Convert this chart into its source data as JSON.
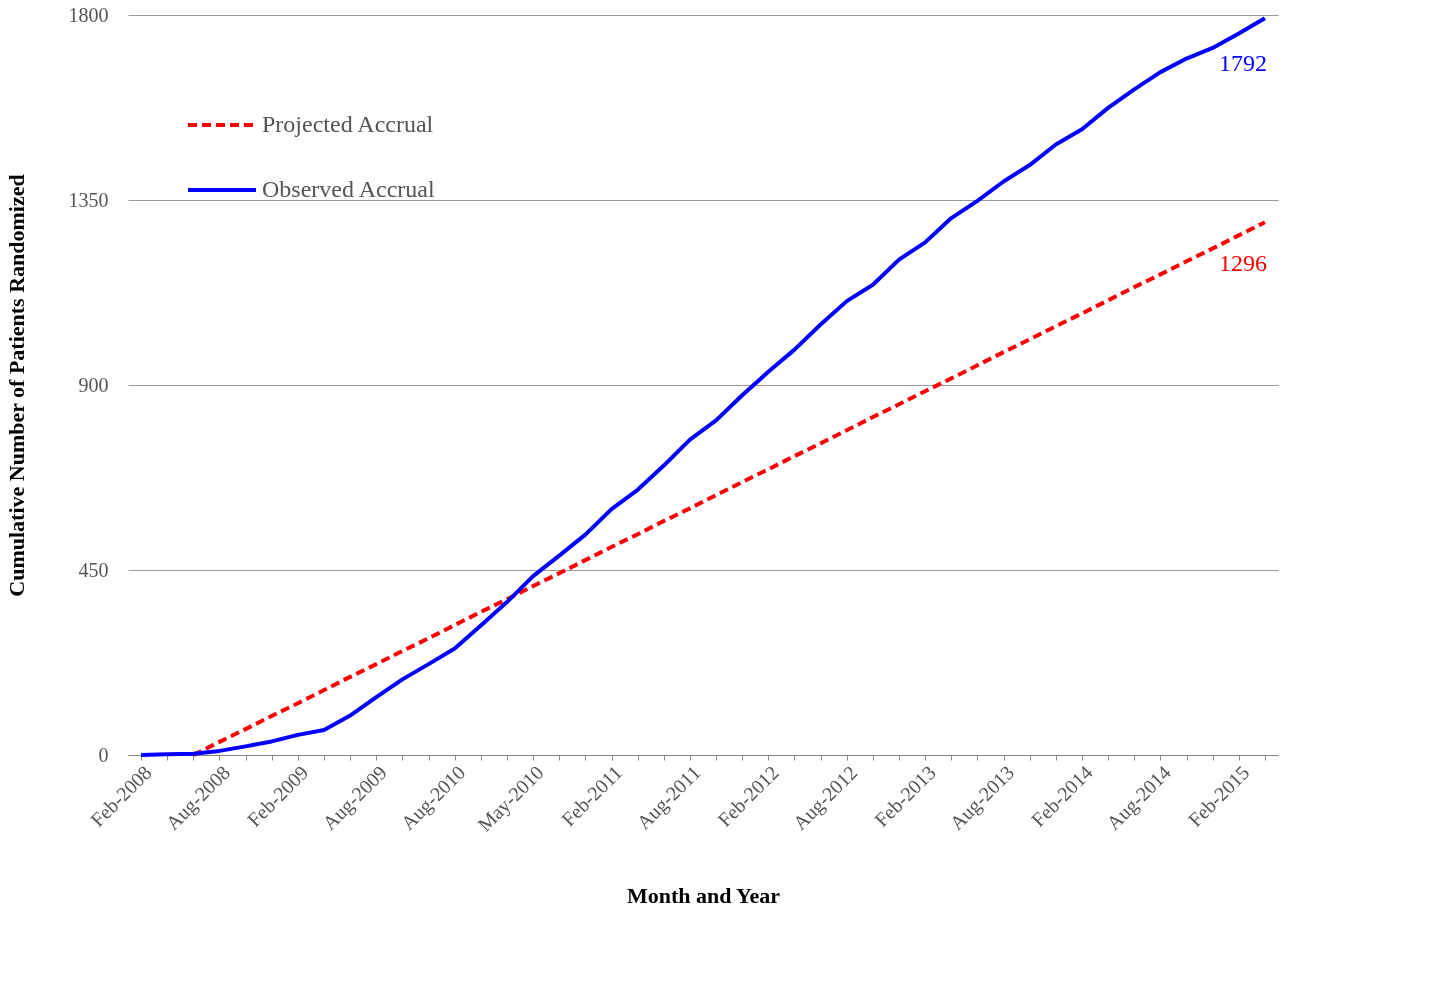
{
  "chart_data": {
    "type": "line",
    "xlabel": "Month and Year",
    "ylabel": "Cumulative Number of Patients Randomized",
    "categories": [
      "Feb-2008",
      null,
      null,
      "Aug-2008",
      null,
      null,
      "Feb-2009",
      null,
      null,
      "Aug-2009",
      null,
      null,
      "Aug-2010",
      null,
      null,
      "May-2010",
      null,
      null,
      "Feb-2011",
      null,
      null,
      "Aug-2011",
      null,
      null,
      "Feb-2012",
      null,
      null,
      "Aug-2012",
      null,
      null,
      "Feb-2013",
      null,
      null,
      "Aug-2013",
      null,
      null,
      "Feb-2014",
      null,
      null,
      "Aug-2014",
      null,
      null,
      "Feb-2015",
      null
    ],
    "series": [
      {
        "name": "Projected Accrual",
        "color": "#ff0000",
        "line_style": "dashed",
        "values": [
          null,
          null,
          0,
          32,
          63,
          95,
          126,
          158,
          190,
          221,
          253,
          284,
          316,
          348,
          379,
          411,
          442,
          474,
          506,
          537,
          569,
          600,
          632,
          664,
          695,
          727,
          758,
          790,
          822,
          853,
          885,
          916,
          948,
          980,
          1011,
          1043,
          1074,
          1106,
          1138,
          1169,
          1201,
          1232,
          1264,
          1296
        ],
        "value_labels": [
          null,
          null,
          null,
          null,
          null,
          null,
          null,
          null,
          null,
          null,
          null,
          null,
          null,
          null,
          null,
          null,
          null,
          null,
          null,
          null,
          null,
          null,
          null,
          null,
          null,
          null,
          null,
          null,
          null,
          null,
          null,
          null,
          null,
          null,
          null,
          null,
          null,
          null,
          null,
          null,
          null,
          null,
          null,
          "1296"
        ]
      },
      {
        "name": "Observed Accrual",
        "color": "#0000ff",
        "line_style": "solid",
        "values": [
          0,
          2,
          3,
          10,
          21,
          33,
          49,
          61,
          96,
          141,
          184,
          221,
          259,
          315,
          372,
          435,
          485,
          536,
          598,
          645,
          704,
          767,
          814,
          875,
          932,
          986,
          1047,
          1104,
          1144,
          1205,
          1247,
          1306,
          1348,
          1395,
          1435,
          1485,
          1522,
          1574,
          1619,
          1661,
          1694,
          1720,
          1755,
          1792
        ],
        "value_labels": [
          null,
          null,
          null,
          null,
          null,
          null,
          null,
          null,
          null,
          null,
          null,
          null,
          null,
          null,
          null,
          null,
          null,
          null,
          null,
          null,
          null,
          null,
          null,
          null,
          null,
          null,
          null,
          null,
          null,
          null,
          null,
          null,
          null,
          null,
          null,
          null,
          null,
          null,
          null,
          null,
          null,
          null,
          null,
          "1792"
        ]
      }
    ],
    "ylim": [
      0,
      1800
    ],
    "yticks": [
      0,
      450,
      900,
      1350,
      1800
    ],
    "grid": "y",
    "legend": "top left",
    "marker": "none"
  }
}
